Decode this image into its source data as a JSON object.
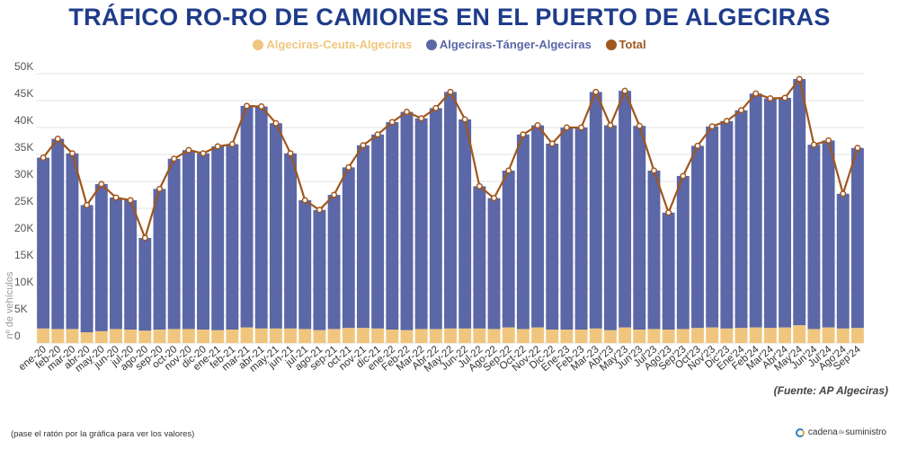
{
  "title": "TRÁFICO RO-RO DE CAMIONES EN EL PUERTO DE ALGECIRAS",
  "source": "(Fuente: AP Algeciras)",
  "hint": "(pase el ratón por la gráfica para ver los valores)",
  "logo": {
    "part1": "cadena",
    "part2": "de",
    "part3": "suministro"
  },
  "colors": {
    "ceuta": "#f0c67e",
    "tanger": "#5b67a6",
    "total": "#a0561c",
    "title": "#1f3c8a"
  },
  "chart_data": {
    "type": "bar",
    "stacked": true,
    "ylabel": "nº de vehículos",
    "ylim": [
      0,
      50000
    ],
    "yticks": [
      0,
      5000,
      10000,
      15000,
      20000,
      25000,
      30000,
      35000,
      40000,
      45000,
      50000
    ],
    "ytick_labels": [
      "0",
      "5K",
      "10K",
      "15K",
      "20K",
      "25K",
      "30K",
      "35K",
      "40K",
      "45K",
      "50K"
    ],
    "grid": true,
    "legend_position": "top",
    "categories": [
      "ene-20",
      "feb-20",
      "mar-20",
      "abr-20",
      "may-20",
      "jun-20",
      "jul-20",
      "ago-20",
      "sep-20",
      "oct-20",
      "nov-20",
      "dic-20",
      "ene-21",
      "feb-21",
      "mar-21",
      "abr-21",
      "may-21",
      "jun-21",
      "jul-21",
      "ago-21",
      "sep-21",
      "oct-21",
      "nov-21",
      "dic-21",
      "ene-22",
      "Feb-22",
      "Mar-22",
      "Abr-22",
      "May-22",
      "Jun-22",
      "Jul-22",
      "Ago-22",
      "Sep-22",
      "Oct-22",
      "Nov-22",
      "Dic-22",
      "Ene-23",
      "Feb-23",
      "Mar-23",
      "Abr'23",
      "May'23",
      "Jun'23",
      "Jul'23",
      "Ago'23",
      "Sep'23",
      "Oct'23",
      "Nov'23",
      "Dic'23",
      "Ene'24",
      "Feb'24",
      "Mar'24",
      "Abr'24",
      "May'24",
      "Jun'24",
      "Jul'24",
      "Ago'24",
      "Sep'24"
    ],
    "series": [
      {
        "name": "Algeciras-Ceuta-Algeciras",
        "type": "bar",
        "values": [
          2700,
          2600,
          2600,
          2000,
          2200,
          2600,
          2500,
          2300,
          2500,
          2600,
          2600,
          2500,
          2400,
          2500,
          2900,
          2700,
          2700,
          2700,
          2600,
          2400,
          2600,
          2800,
          2800,
          2700,
          2500,
          2400,
          2600,
          2600,
          2700,
          2700,
          2700,
          2600,
          2900,
          2600,
          2900,
          2500,
          2500,
          2500,
          2700,
          2400,
          2900,
          2500,
          2600,
          2500,
          2600,
          2800,
          2900,
          2700,
          2800,
          2900,
          2800,
          2900,
          3300,
          2600,
          2900,
          2700,
          2800
        ]
      },
      {
        "name": "Algeciras-Tánger-Algeciras",
        "type": "bar",
        "values": [
          31700,
          35300,
          32600,
          23600,
          27300,
          24400,
          24000,
          17200,
          26100,
          31600,
          33200,
          32700,
          34100,
          34400,
          41100,
          41200,
          38100,
          32500,
          23900,
          22300,
          24900,
          29800,
          33900,
          36000,
          38500,
          40500,
          39100,
          41000,
          43900,
          38800,
          26400,
          24300,
          29100,
          36100,
          37500,
          34500,
          37500,
          37500,
          43900,
          38000,
          43900,
          37800,
          29400,
          21700,
          28400,
          33800,
          37300,
          38500,
          40400,
          43400,
          42600,
          42600,
          45700,
          34200,
          34700,
          25000,
          33400
        ]
      },
      {
        "name": "Total",
        "type": "line",
        "values": [
          34400,
          37900,
          35200,
          25600,
          29500,
          27000,
          26500,
          19500,
          28600,
          34200,
          35800,
          35200,
          36500,
          36900,
          44000,
          43900,
          40800,
          35200,
          26500,
          24700,
          27500,
          32600,
          36700,
          38700,
          41000,
          42900,
          41700,
          43600,
          46600,
          41500,
          29100,
          26900,
          32000,
          38700,
          40400,
          37000,
          40000,
          40000,
          46600,
          40400,
          46800,
          40300,
          32000,
          24200,
          31000,
          36600,
          40200,
          41200,
          43200,
          46300,
          45400,
          45500,
          49000,
          36800,
          37600,
          27700,
          36200
        ]
      }
    ]
  }
}
